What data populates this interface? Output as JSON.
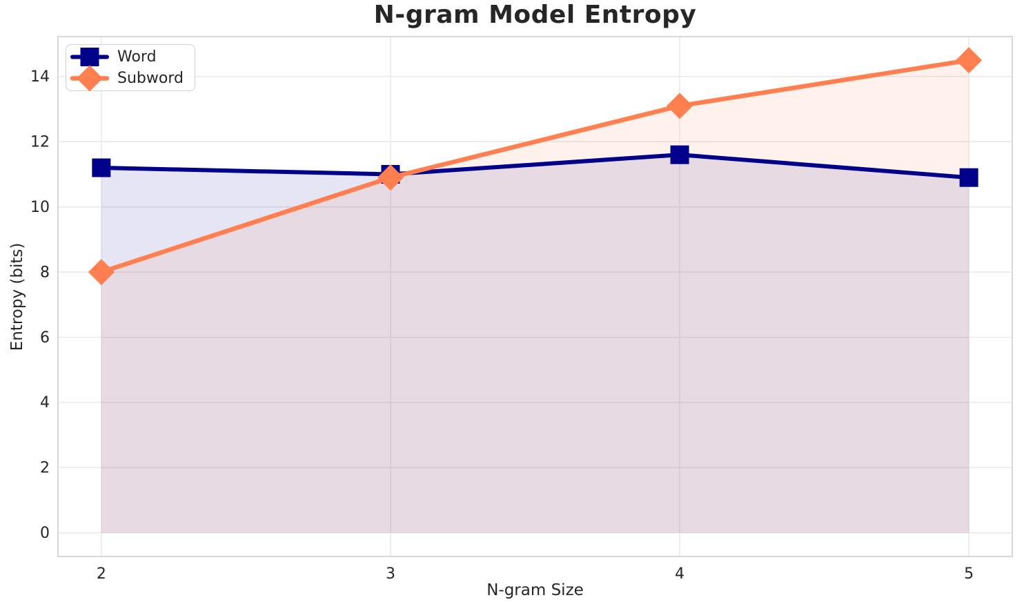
{
  "chart_data": {
    "type": "line",
    "title": "N-gram Model Entropy",
    "xlabel": "N-gram Size",
    "ylabel": "Entropy (bits)",
    "x": [
      2,
      3,
      4,
      5
    ],
    "series": [
      {
        "name": "Word",
        "color": "#00008B",
        "marker": "square",
        "values": [
          11.2,
          11.0,
          11.6,
          10.9
        ]
      },
      {
        "name": "Subword",
        "color": "#FF7F50",
        "marker": "diamond",
        "values": [
          8.0,
          10.9,
          13.1,
          14.5
        ]
      }
    ],
    "xticks": [
      2,
      3,
      4,
      5
    ],
    "yticks": [
      0,
      2,
      4,
      6,
      8,
      10,
      12,
      14
    ],
    "xlim": [
      1.85,
      5.15
    ],
    "ylim": [
      -0.725,
      15.225
    ],
    "grid": true,
    "fill_to_zero": true,
    "fill_alpha": 0.1,
    "legend_position": "upper left",
    "colors": {
      "background": "#ffffff",
      "grid": "#e7e7e7",
      "spine": "#d4d4d4",
      "text": "#262626"
    }
  }
}
